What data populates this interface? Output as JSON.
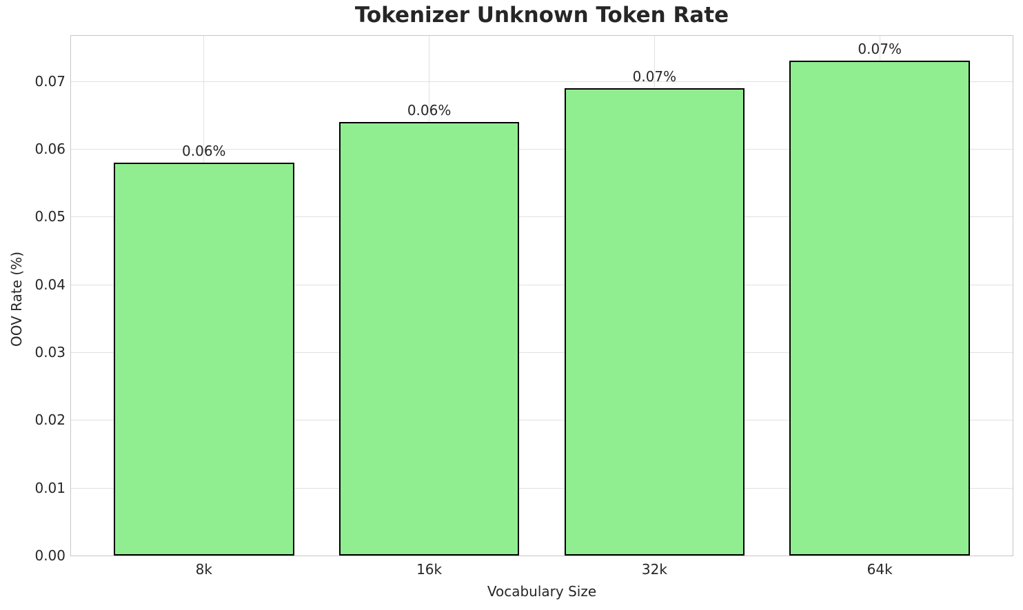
{
  "chart_data": {
    "type": "bar",
    "title": "Tokenizer Unknown Token Rate",
    "xlabel": "Vocabulary Size",
    "ylabel": "OOV Rate (%)",
    "categories": [
      "8k",
      "16k",
      "32k",
      "64k"
    ],
    "values": [
      0.058,
      0.064,
      0.069,
      0.073
    ],
    "bar_labels": [
      "0.06%",
      "0.06%",
      "0.07%",
      "0.07%"
    ],
    "ylim": [
      0,
      0.0767
    ],
    "xlim": [
      -0.59,
      3.59
    ],
    "bar_width_units": 0.8,
    "yticks": [
      "0.00",
      "0.01",
      "0.02",
      "0.03",
      "0.04",
      "0.05",
      "0.06",
      "0.07"
    ],
    "grid": true,
    "legend_position": "none",
    "colors": {
      "bar_fill": "#90EE90",
      "bar_edge": "#000000",
      "grid_line": "#e0e0e0",
      "spine": "#c6c6c6",
      "text": "#262626",
      "background": "#ffffff"
    }
  }
}
